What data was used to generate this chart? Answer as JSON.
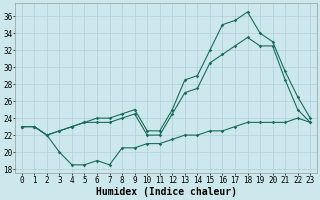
{
  "xlabel": "Humidex (Indice chaleur)",
  "bg_color": "#cde8ec",
  "grid_color": "#b0cfd4",
  "line_color": "#1a6b5a",
  "xlim": [
    -0.5,
    23.5
  ],
  "ylim": [
    17.5,
    37.5
  ],
  "xticks": [
    0,
    1,
    2,
    3,
    4,
    5,
    6,
    7,
    8,
    9,
    10,
    11,
    12,
    13,
    14,
    15,
    16,
    17,
    18,
    19,
    20,
    21,
    22,
    23
  ],
  "yticks": [
    18,
    20,
    22,
    24,
    26,
    28,
    30,
    32,
    34,
    36
  ],
  "line1_x": [
    0,
    1,
    2,
    3,
    4,
    5,
    6,
    7,
    8,
    9,
    10,
    11,
    12,
    13,
    14,
    15,
    16,
    17,
    18,
    19,
    20,
    21,
    22,
    23
  ],
  "line1_y": [
    23.0,
    23.0,
    22.0,
    20.0,
    18.5,
    18.5,
    19.0,
    18.5,
    20.5,
    20.5,
    21.0,
    21.0,
    21.5,
    22.0,
    22.0,
    22.5,
    22.5,
    23.0,
    23.5,
    23.5,
    23.5,
    23.5,
    24.0,
    23.5
  ],
  "line2_x": [
    0,
    1,
    2,
    3,
    4,
    5,
    6,
    7,
    8,
    9,
    10,
    11,
    12,
    13,
    14,
    15,
    16,
    17,
    18,
    19,
    20,
    21,
    22,
    23
  ],
  "line2_y": [
    23.0,
    23.0,
    22.0,
    22.5,
    23.0,
    23.5,
    24.0,
    24.0,
    24.5,
    25.0,
    22.5,
    22.5,
    25.0,
    28.5,
    29.0,
    32.0,
    35.0,
    35.5,
    36.5,
    34.0,
    33.0,
    29.5,
    26.5,
    24.0
  ],
  "line3_x": [
    0,
    1,
    2,
    3,
    4,
    5,
    6,
    7,
    8,
    9,
    10,
    11,
    12,
    13,
    14,
    15,
    16,
    17,
    18,
    19,
    20,
    21,
    22,
    23
  ],
  "line3_y": [
    23.0,
    23.0,
    22.0,
    22.5,
    23.0,
    23.5,
    23.5,
    23.5,
    24.0,
    24.5,
    22.0,
    22.0,
    24.5,
    27.0,
    27.5,
    30.5,
    31.5,
    32.5,
    33.5,
    32.5,
    32.5,
    28.5,
    25.0,
    23.5
  ],
  "line_width": 0.8,
  "marker": "D",
  "marker_size": 1.8,
  "tick_fontsize": 5.5,
  "xlabel_fontsize": 7.0
}
